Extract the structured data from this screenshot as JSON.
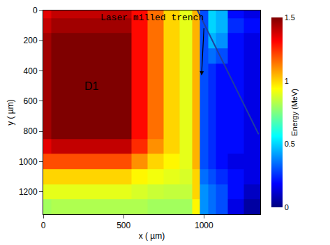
{
  "chart_data": {
    "type": "heatmap",
    "x_label": "x ( µm)",
    "y_label": "y ( µm)",
    "colorbar_label": "Energy (MeV)",
    "annotations": [
      "D1",
      "Laser milled trench"
    ],
    "xlim": [
      0,
      1350
    ],
    "xticks": [
      0,
      500,
      1000
    ],
    "ylim": [
      1350,
      0
    ],
    "yticks": [
      0,
      200,
      400,
      600,
      800,
      1000,
      1200
    ],
    "colorbar_range": [
      0,
      1.5
    ],
    "colorbar_ticks": [
      0,
      0.5,
      1,
      1.5
    ],
    "x": [
      0,
      100,
      200,
      300,
      400,
      500,
      600,
      700,
      800,
      900,
      950,
      1000,
      1050,
      1100,
      1200,
      1300
    ],
    "y": [
      0,
      100,
      200,
      300,
      400,
      500,
      600,
      700,
      800,
      900,
      1000,
      1100,
      1200,
      1300
    ],
    "cells": [
      [
        1.35,
        1.4,
        1.4,
        1.4,
        1.4,
        1.4,
        1.3,
        1.15,
        1.0,
        0.9,
        1.05,
        0.3,
        0.5,
        0.45,
        0.2,
        0.15
      ],
      [
        1.4,
        1.45,
        1.45,
        1.45,
        1.45,
        1.45,
        1.3,
        1.15,
        1.0,
        0.9,
        1.05,
        0.3,
        0.5,
        0.45,
        0.25,
        0.2
      ],
      [
        1.45,
        1.5,
        1.5,
        1.5,
        1.5,
        1.5,
        1.3,
        1.15,
        1.0,
        0.9,
        1.05,
        0.3,
        0.45,
        0.4,
        0.2,
        0.15
      ],
      [
        1.45,
        1.5,
        1.5,
        1.5,
        1.5,
        1.5,
        1.3,
        1.15,
        1.0,
        0.9,
        1.05,
        0.3,
        0.35,
        0.3,
        0.2,
        0.15
      ],
      [
        1.45,
        1.5,
        1.5,
        1.5,
        1.5,
        1.5,
        1.3,
        1.15,
        1.0,
        0.9,
        1.05,
        0.3,
        0.25,
        0.2,
        0.2,
        0.15
      ],
      [
        1.45,
        1.5,
        1.5,
        1.5,
        1.5,
        1.5,
        1.3,
        1.15,
        1.0,
        0.9,
        1.05,
        0.3,
        0.25,
        0.2,
        0.2,
        0.15
      ],
      [
        1.45,
        1.5,
        1.5,
        1.5,
        1.5,
        1.5,
        1.3,
        1.15,
        1.0,
        0.9,
        1.05,
        0.3,
        0.25,
        0.2,
        0.2,
        0.15
      ],
      [
        1.45,
        1.5,
        1.5,
        1.5,
        1.5,
        1.5,
        1.3,
        1.15,
        1.0,
        0.9,
        1.05,
        0.3,
        0.25,
        0.2,
        0.2,
        0.15
      ],
      [
        1.45,
        1.5,
        1.5,
        1.5,
        1.5,
        1.5,
        1.3,
        1.15,
        1.0,
        0.9,
        1.05,
        0.3,
        0.25,
        0.2,
        0.2,
        0.15
      ],
      [
        1.35,
        1.4,
        1.4,
        1.4,
        1.4,
        1.4,
        1.25,
        1.1,
        1.0,
        0.9,
        1.05,
        0.3,
        0.25,
        0.2,
        0.2,
        0.15
      ],
      [
        1.2,
        1.2,
        1.2,
        1.2,
        1.2,
        1.2,
        1.1,
        1.0,
        0.95,
        0.9,
        1.05,
        0.3,
        0.25,
        0.2,
        0.15,
        0.15
      ],
      [
        1.0,
        1.0,
        1.0,
        1.0,
        1.0,
        1.0,
        0.95,
        0.92,
        0.9,
        0.88,
        1.0,
        0.35,
        0.3,
        0.25,
        0.2,
        0.15
      ],
      [
        0.9,
        0.9,
        0.9,
        0.9,
        0.9,
        0.9,
        0.88,
        0.86,
        0.85,
        0.85,
        1.0,
        0.4,
        0.35,
        0.3,
        0.2,
        0.1
      ],
      [
        0.8,
        0.82,
        0.82,
        0.82,
        0.82,
        0.82,
        0.82,
        0.8,
        0.8,
        0.8,
        0.95,
        0.4,
        0.35,
        0.3,
        0.15,
        0.05
      ]
    ],
    "series": [
      {
        "type": "line",
        "color": "#1f3fa0",
        "x": [
          960,
          1340
        ],
        "y": [
          0,
          820
        ]
      }
    ]
  }
}
